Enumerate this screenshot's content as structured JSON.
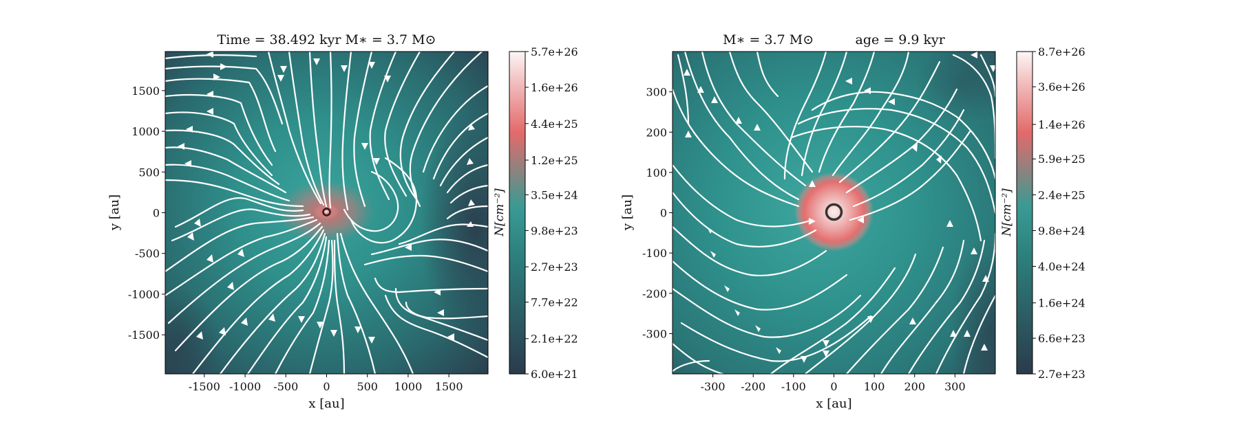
{
  "chart_data": [
    {
      "type": "heatmap",
      "title": "Time = 38.492 kyr    M∗ = 3.7 M⊙",
      "xlabel": "x [au]",
      "ylabel": "y [au]",
      "xlim": [
        -1980,
        1980
      ],
      "ylim": [
        -1980,
        1980
      ],
      "xticks": [
        -1500,
        -1000,
        -500,
        0,
        500,
        1000,
        1500
      ],
      "yticks": [
        -1500,
        -1000,
        -500,
        0,
        500,
        1000,
        1500
      ],
      "xticklabels": [
        "-1500",
        "-1000",
        "-500",
        "0",
        "500",
        "1000",
        "1500"
      ],
      "yticklabels": [
        "-1500",
        "-1000",
        "-500",
        "0",
        "500",
        "1000",
        "1500"
      ],
      "colorbar": {
        "label": "N[cm⁻²]",
        "scale": "log",
        "range": [
          6e+21,
          5.7e+26
        ],
        "ticks": [
          6e+21,
          2.1e+22,
          7.7e+22,
          2.7e+23,
          9.8e+23,
          3.5e+24,
          1.2e+25,
          4.4e+25,
          1.6e+26,
          5.7e+26
        ],
        "ticklabels": [
          "6.0e+21",
          "2.1e+22",
          "7.7e+22",
          "2.7e+23",
          "9.8e+23",
          "3.5e+24",
          "1.2e+25",
          "4.4e+25",
          "1.6e+26",
          "5.7e+26"
        ]
      },
      "overlay": "white magnetic-field streamlines with arrows",
      "marker": "ring at origin",
      "grid": false
    },
    {
      "type": "heatmap",
      "title": "M∗ = 3.7 M⊙          age = 9.9 kyr",
      "xlabel": "x [au]",
      "ylabel": "y [au]",
      "xlim": [
        -400,
        400
      ],
      "ylim": [
        -400,
        400
      ],
      "xticks": [
        -300,
        -200,
        -100,
        0,
        100,
        200,
        300
      ],
      "yticks": [
        -300,
        -200,
        -100,
        0,
        100,
        200,
        300
      ],
      "xticklabels": [
        "-300",
        "-200",
        "-100",
        "0",
        "100",
        "200",
        "300"
      ],
      "yticklabels": [
        "-300",
        "-200",
        "-100",
        "0",
        "100",
        "200",
        "300"
      ],
      "colorbar": {
        "label": "N[cm⁻²]",
        "scale": "log",
        "range": [
          2.7e+23,
          8.7e+26
        ],
        "ticks": [
          2.7e+23,
          6.6e+23,
          1.6e+24,
          4e+24,
          9.8e+24,
          2.4e+25,
          5.9e+25,
          1.4e+26,
          3.6e+26,
          8.7e+26
        ],
        "ticklabels": [
          "2.7e+23",
          "6.6e+23",
          "1.6e+24",
          "4.0e+24",
          "9.8e+24",
          "2.4e+25",
          "5.9e+25",
          "1.4e+26",
          "3.6e+26",
          "8.7e+26"
        ]
      },
      "overlay": "white magnetic-field streamlines with arrows",
      "marker": "ring at origin",
      "grid": false
    }
  ],
  "colors": {
    "low": "#2b3b4b",
    "mid": "#2e908b",
    "high": "#e46a6a",
    "peak": "#fbf3f3",
    "streamline": "#ffffff"
  }
}
